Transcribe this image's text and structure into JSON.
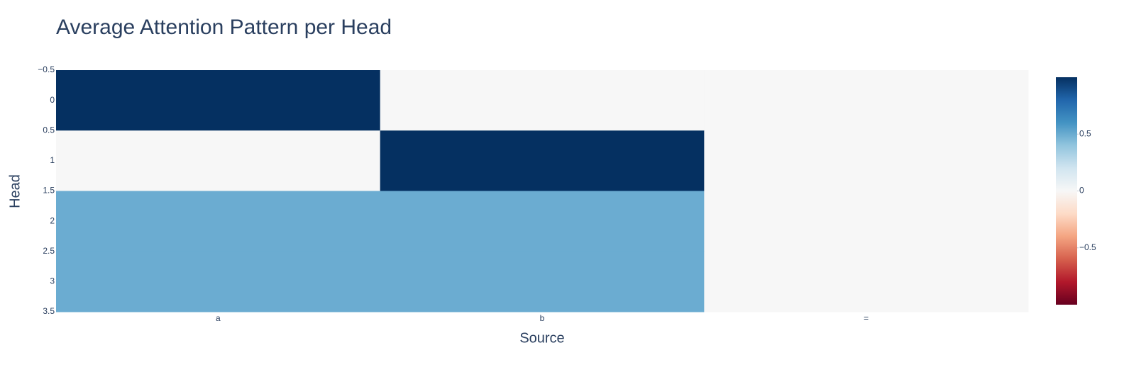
{
  "chart_data": {
    "type": "heatmap",
    "title": "Average Attention Pattern per Head",
    "x_label": "Source",
    "y_label": "Head",
    "categories": [
      "a",
      "b",
      "="
    ],
    "y": [
      0,
      1,
      2,
      3
    ],
    "z": [
      [
        1,
        0,
        0
      ],
      [
        0,
        1,
        0
      ],
      [
        0.5,
        0.5,
        0
      ],
      [
        0.5,
        0.5,
        0
      ]
    ],
    "ylim": [
      -0.5,
      3.5
    ],
    "yticks": [
      {
        "value": -0.5,
        "label": "−0.5"
      },
      0,
      0.5,
      1,
      1.5,
      2,
      2.5,
      3,
      3.5
    ],
    "zlim": [
      -1,
      1
    ],
    "colorbar_ticks": [
      0.5,
      0,
      {
        "value": -0.5,
        "label": "−0.5"
      }
    ],
    "colorscale": [
      [
        0,
        "#67001f"
      ],
      [
        0.1,
        "#b2182b"
      ],
      [
        0.2,
        "#d6604d"
      ],
      [
        0.3,
        "#f4a582"
      ],
      [
        0.4,
        "#fddbc7"
      ],
      [
        0.5,
        "#f7f7f7"
      ],
      [
        0.6,
        "#d1e5f0"
      ],
      [
        0.7,
        "#92c5de"
      ],
      [
        0.8,
        "#4393c3"
      ],
      [
        0.9,
        "#2166ac"
      ],
      [
        1,
        "#053061"
      ]
    ]
  }
}
